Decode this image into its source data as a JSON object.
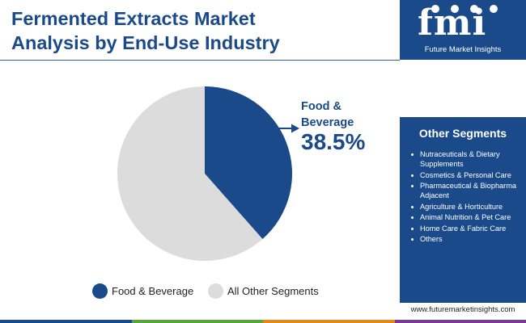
{
  "title_line1": "Fermented Extracts Market",
  "title_line2": "Analysis by End-Use Industry",
  "brand": {
    "logo_letters": "fmi",
    "logo_name": "Future Market Insights",
    "website": "www.futuremarketinsights.com"
  },
  "colors": {
    "primary": "#1a4a8a",
    "other": "#dcdcdc",
    "bottom_bar": [
      "#1a4a8a",
      "#5aa63a",
      "#e08a1e",
      "#7a3a94"
    ]
  },
  "other_segments": {
    "title": "Other Segments",
    "items": [
      "Nutraceuticals & Dietary Supplements",
      "Cosmetics & Personal Care",
      "Pharmaceutical & Biopharma Adjacent",
      "Agriculture & Horticulture",
      "Animal Nutrition & Pet Care",
      "Home Care & Fabric Care",
      "Others"
    ]
  },
  "callout": {
    "label_line1": "Food &",
    "label_line2": "Beverage",
    "value": "38.5%"
  },
  "chart_data": {
    "type": "pie",
    "title": "Fermented Extracts Market Analysis by End-Use Industry",
    "slices": [
      {
        "label": "Food & Beverage",
        "value": 38.5,
        "color": "#1a4a8a"
      },
      {
        "label": "All Other Segments",
        "value": 61.5,
        "color": "#dcdcdc"
      }
    ],
    "legend_position": "bottom",
    "legend": [
      "Food & Beverage",
      "All Other Segments"
    ]
  }
}
